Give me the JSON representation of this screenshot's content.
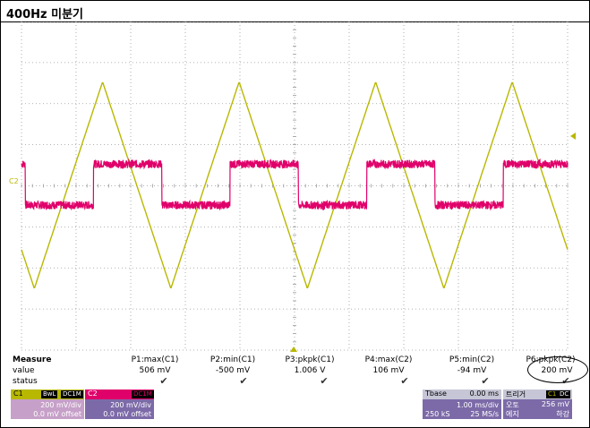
{
  "title": "400Hz 미분기",
  "scope": {
    "channel_label": "C2",
    "colors": {
      "c1": "#b8b800",
      "c2": "#e0006a",
      "grid": "#9a9a9a"
    }
  },
  "chart_data": {
    "type": "line",
    "x_unit": "ms",
    "xlim": [
      0,
      10
    ],
    "y_unit": "mV",
    "series": [
      {
        "name": "C1",
        "kind": "triangle",
        "period_ms": 2.5,
        "max_mv": 506,
        "min_mv": -500,
        "volts_per_div_mv": 200
      },
      {
        "name": "C2",
        "kind": "square",
        "period_ms": 2.5,
        "max_mv": 106,
        "min_mv": -94,
        "volts_per_div_mv": 200
      }
    ]
  },
  "measure": {
    "heading": "Measure",
    "row_labels": [
      "value",
      "status"
    ],
    "items": [
      {
        "label": "P1:max(C1)",
        "value": "506 mV"
      },
      {
        "label": "P2:min(C1)",
        "value": "-500 mV"
      },
      {
        "label": "P3:pkpk(C1)",
        "value": "1.006 V"
      },
      {
        "label": "P4:max(C2)",
        "value": "106 mV"
      },
      {
        "label": "P5:min(C2)",
        "value": "-94 mV"
      },
      {
        "label": "P6:pkpk(C2)",
        "value": "200 mV"
      }
    ]
  },
  "c1_box": {
    "name": "C1",
    "tags": [
      "BwL",
      "DC1M"
    ],
    "line1": "200 mV/div",
    "line2": "0.0 mV offset"
  },
  "c2_box": {
    "name": "C2",
    "tags": [
      "DC1M"
    ],
    "line1": "200 mV/div",
    "line2": "0.0 mV offset"
  },
  "tbase_box": {
    "label": "Tbase",
    "value": "0.00 ms",
    "line1": "1.00 ms/div",
    "line2_left": "250 kS",
    "line2_right": "25 MS/s"
  },
  "trigger_box": {
    "label": "트리거",
    "tags": [
      "C1",
      "DC"
    ],
    "row1_left": "오토",
    "row1_right": "256 mV",
    "row2_left": "에지",
    "row2_right": "하강"
  }
}
